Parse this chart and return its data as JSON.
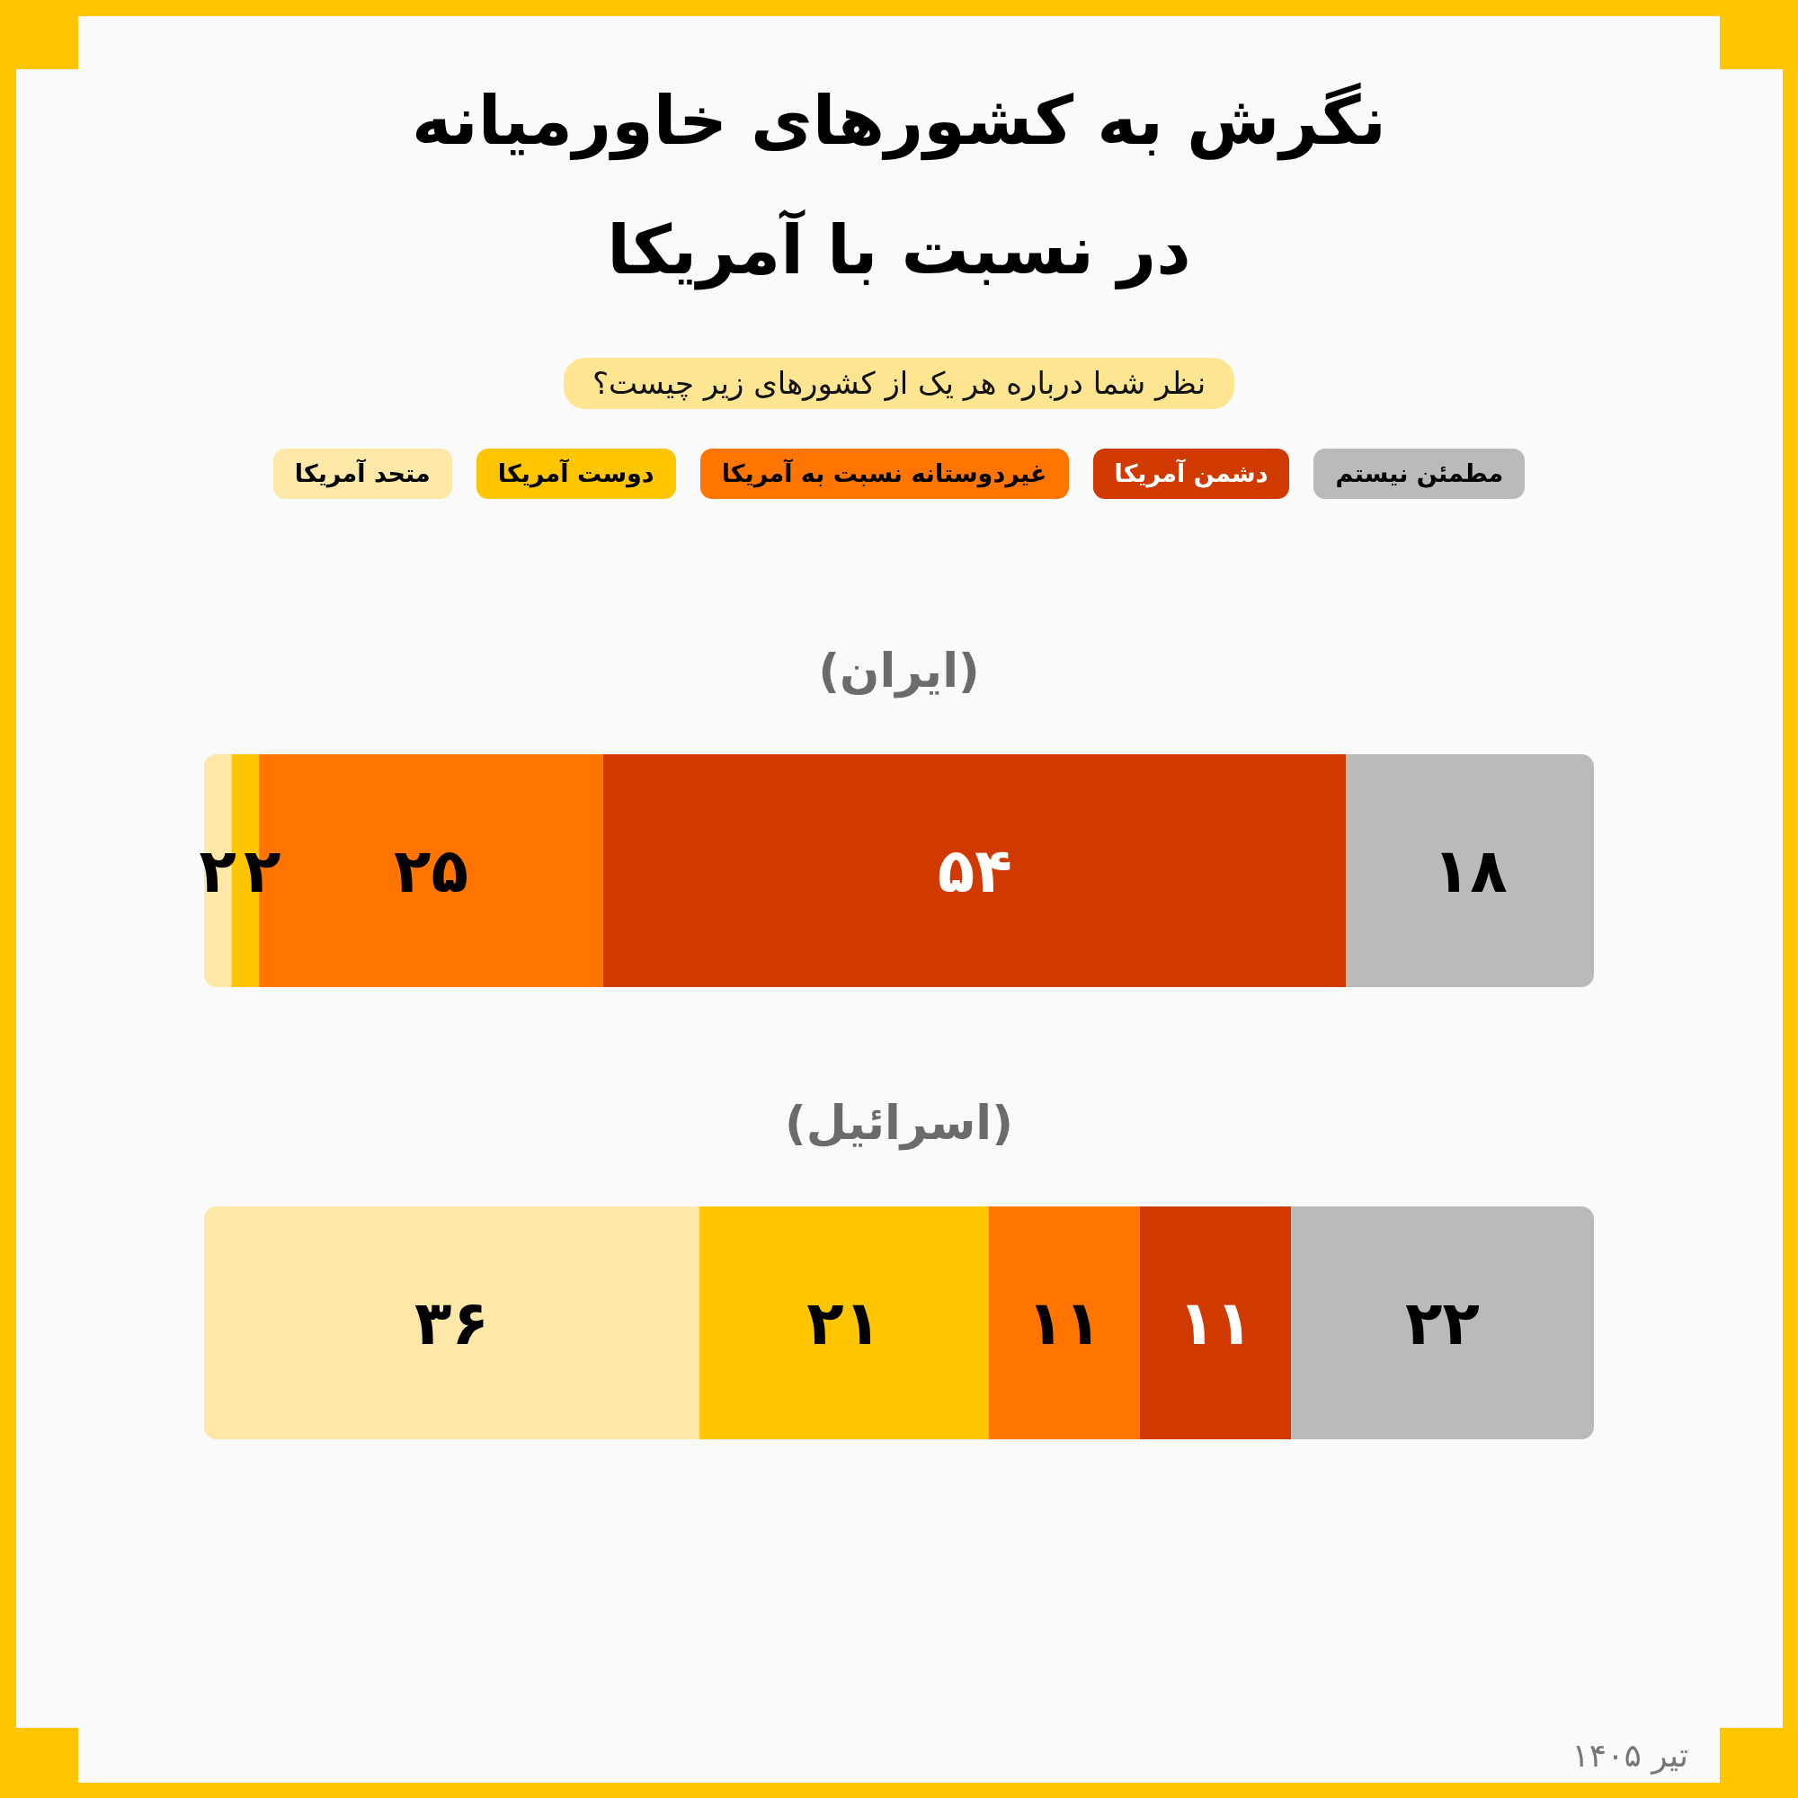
{
  "chart_data": {
    "type": "bar",
    "orientation": "horizontal",
    "stacked": true,
    "title": "نگرش به کشورهای خاورمیانه\nدر نسبت با آمریکا",
    "subtitle": "نظر شما درباره هر یک از کشورهای زیر چیست؟",
    "categories": [
      "(ایران)",
      "(اسرائیل)"
    ],
    "series": [
      {
        "name": "متحد آمریکا",
        "color": "#fee8a8",
        "values": [
          2,
          36
        ],
        "value_labels": [
          "۲",
          "۳۶"
        ]
      },
      {
        "name": "دوست آمریکا",
        "color": "#ffc600",
        "values": [
          2,
          21
        ],
        "value_labels": [
          "۲",
          "۲۱"
        ]
      },
      {
        "name": "غیردوستانه نسبت به آمریکا",
        "color": "#ff7500",
        "values": [
          25,
          11
        ],
        "value_labels": [
          "۲۵",
          "۱۱"
        ]
      },
      {
        "name": "دشمن آمریکا",
        "color": "#d03a00",
        "values": [
          54,
          11
        ],
        "value_labels": [
          "۵۴",
          "۱۱"
        ]
      },
      {
        "name": "مطمئن نیستم",
        "color": "#bababa",
        "values": [
          18,
          22
        ],
        "value_labels": [
          "۱۸",
          "۲۲"
        ]
      }
    ],
    "legend": "top",
    "annotations": [
      "تیر ۱۴۰۵"
    ]
  }
}
